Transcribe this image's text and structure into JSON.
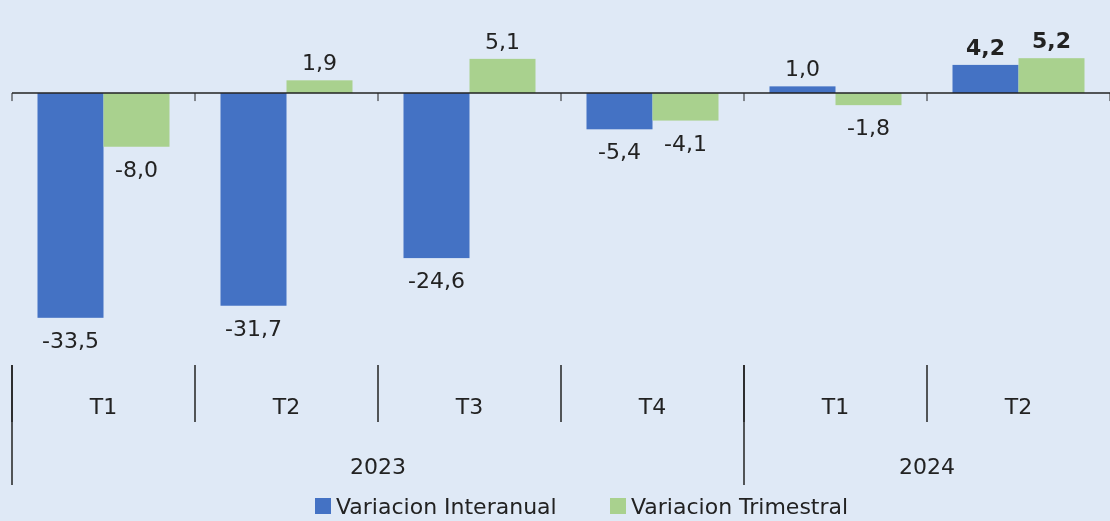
{
  "chart_data": {
    "type": "bar",
    "categories": [
      "T1",
      "T2",
      "T3",
      "T4",
      "T1",
      "T2"
    ],
    "series": [
      {
        "name": "Variacion Interanual",
        "color": "#4472c4",
        "values": [
          -33.5,
          -31.7,
          -24.6,
          -5.4,
          1.0,
          4.2
        ],
        "value_labels": [
          "-33,5",
          "-31,7",
          "-24,6",
          "-5,4",
          "1,0",
          "4,2"
        ]
      },
      {
        "name": "Variacion Trimestral",
        "color": "#a9d18e",
        "values": [
          -8.0,
          1.9,
          5.1,
          -4.1,
          -1.8,
          5.2
        ],
        "value_labels": [
          "-8,0",
          "1,9",
          "5,1",
          "-4,1",
          "-1,8",
          "5,2"
        ]
      }
    ],
    "legend": "bottom",
    "annotations": [
      "2023",
      "2024"
    ]
  }
}
